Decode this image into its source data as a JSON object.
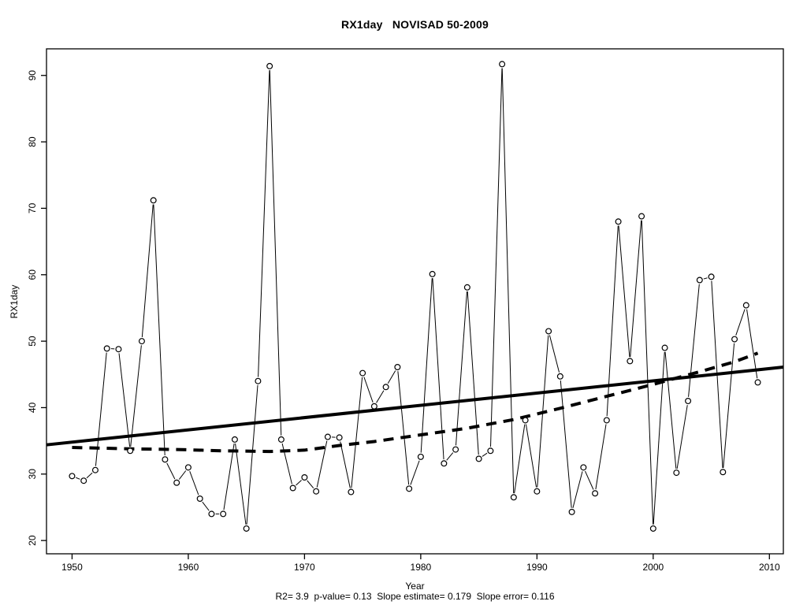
{
  "figure": {
    "background": "#ffffff",
    "foreground": "#000000"
  },
  "chart_data": {
    "type": "line",
    "title": "RX1day   NOVISAD 50-2009",
    "xlabel": "Year",
    "ylabel": "RX1day",
    "footer": "R2= 3.9  p-value= 0.13  Slope estimate= 0.179  Slope error= 0.116",
    "stats": {
      "R2": 3.9,
      "p_value": 0.13,
      "slope_estimate": 0.179,
      "slope_error": 0.116
    },
    "xlim": [
      1947.8,
      2011.2
    ],
    "ylim": [
      18,
      94
    ],
    "x_ticks": [
      1950,
      1960,
      1970,
      1980,
      1990,
      2000,
      2010
    ],
    "y_ticks": [
      20,
      30,
      40,
      50,
      60,
      70,
      80,
      90
    ],
    "grid": false,
    "legend": "none",
    "marker": "open-circle",
    "colors": {
      "series": "#000000",
      "trend": "#000000",
      "lowess": "#000000",
      "background": "#ffffff"
    },
    "series": [
      {
        "name": "annual-rx1day",
        "style": "thin-line-open-circle-markers",
        "x": [
          1950,
          1951,
          1952,
          1953,
          1954,
          1955,
          1956,
          1957,
          1958,
          1959,
          1960,
          1961,
          1962,
          1963,
          1964,
          1965,
          1966,
          1967,
          1968,
          1969,
          1970,
          1971,
          1972,
          1973,
          1974,
          1975,
          1976,
          1977,
          1978,
          1979,
          1980,
          1981,
          1982,
          1983,
          1984,
          1985,
          1986,
          1987,
          1988,
          1989,
          1990,
          1991,
          1992,
          1993,
          1994,
          1995,
          1996,
          1997,
          1998,
          1999,
          2000,
          2001,
          2002,
          2003,
          2004,
          2005,
          2006,
          2007,
          2008,
          2009
        ],
        "y": [
          29.7,
          29.0,
          30.6,
          48.9,
          48.8,
          33.5,
          50.0,
          71.2,
          32.2,
          28.7,
          31.0,
          26.3,
          24.0,
          24.0,
          35.2,
          21.8,
          44.0,
          91.4,
          35.2,
          27.9,
          29.5,
          27.4,
          35.6,
          35.5,
          27.3,
          45.2,
          40.2,
          43.1,
          46.1,
          27.8,
          32.6,
          60.1,
          31.6,
          33.7,
          58.1,
          32.3,
          33.5,
          91.7,
          26.5,
          38.1,
          27.4,
          51.5,
          44.7,
          24.3,
          31.0,
          27.1,
          38.1,
          68.0,
          47.0,
          68.8,
          21.8,
          49.0,
          30.2,
          41.0,
          59.2,
          59.7,
          30.3,
          50.3,
          55.4,
          43.8
        ]
      },
      {
        "name": "linear-trend",
        "style": "thick-solid",
        "x": [
          1947.8,
          2011.2
        ],
        "y": [
          34.4,
          46.1
        ]
      },
      {
        "name": "smoothed-trend-lowess",
        "style": "thick-dashed",
        "x": [
          1950,
          1955,
          1959,
          1963,
          1967,
          1970,
          1973,
          1976,
          1980,
          1984,
          1988,
          1992,
          1996,
          2000,
          2004,
          2007,
          2009
        ],
        "y": [
          34.0,
          33.8,
          33.7,
          33.5,
          33.4,
          33.6,
          34.3,
          34.9,
          35.9,
          36.9,
          38.2,
          39.9,
          41.7,
          43.5,
          45.4,
          46.9,
          48.2
        ]
      }
    ]
  }
}
